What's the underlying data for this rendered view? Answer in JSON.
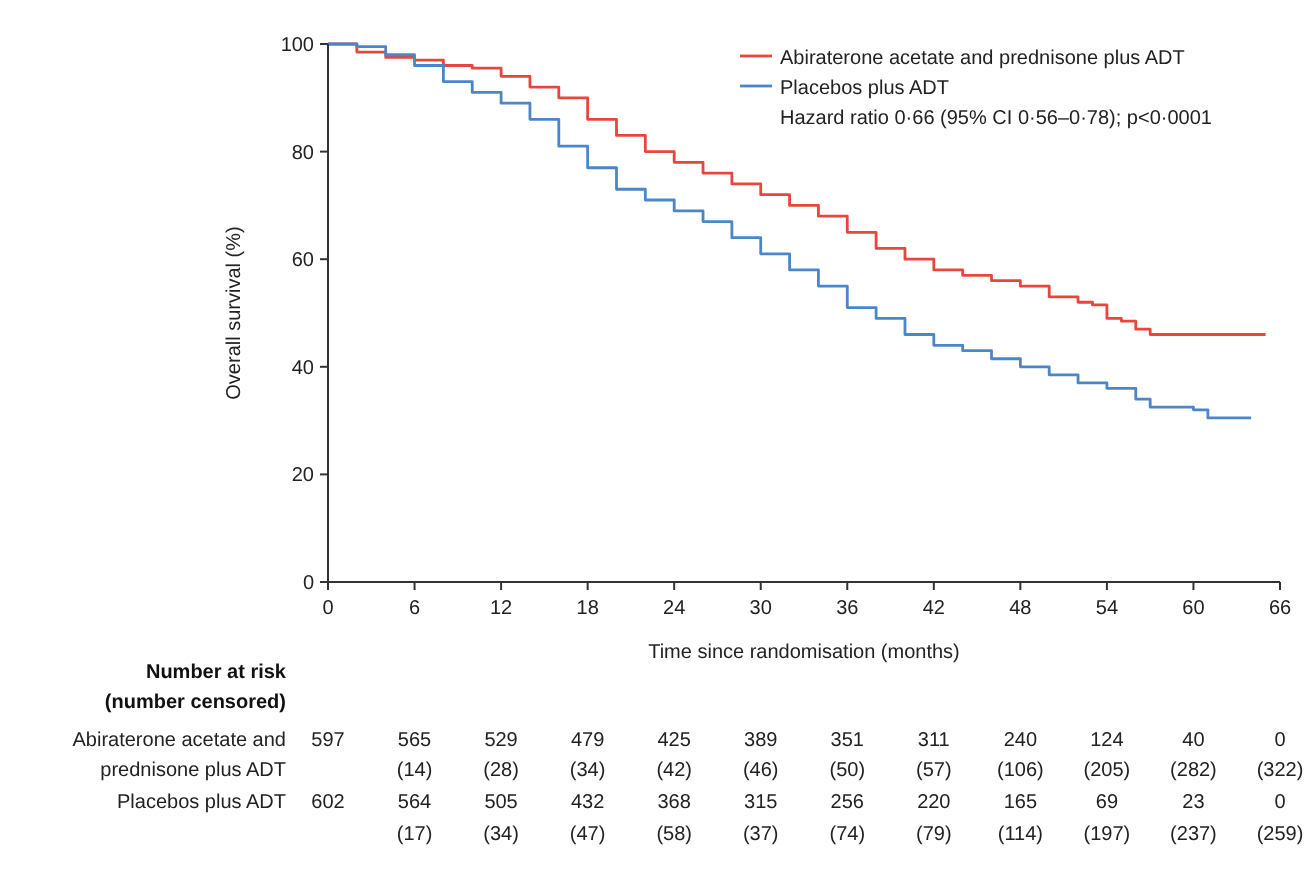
{
  "chart_data": {
    "type": "step",
    "xlabel": "Time since randomisation (months)",
    "ylabel": "Overall survival (%)",
    "xlim": [
      0,
      66
    ],
    "xticks": [
      0,
      6,
      12,
      18,
      24,
      30,
      36,
      42,
      48,
      54,
      60,
      66
    ],
    "ylim": [
      0,
      100
    ],
    "yticks": [
      0,
      20,
      40,
      60,
      80,
      100
    ],
    "legend": "top right",
    "grid": false,
    "series": [
      {
        "name": "Abiraterone acetate and prednisone plus ADT",
        "color": "#e8463c",
        "x": [
          0,
          2,
          4,
          6,
          8,
          10,
          12,
          14,
          16,
          18,
          20,
          22,
          24,
          26,
          28,
          30,
          32,
          34,
          36,
          38,
          40,
          42,
          44,
          46,
          48,
          50,
          52,
          53,
          54,
          55,
          56,
          57,
          60,
          65
        ],
        "values": [
          100,
          98.5,
          97.5,
          97,
          96,
          95.5,
          94,
          92,
          90,
          86,
          83,
          80,
          78,
          76,
          74,
          72,
          70,
          68,
          65,
          62,
          60,
          58,
          57,
          56,
          55,
          53,
          52,
          51.5,
          49,
          48.5,
          47,
          46,
          46,
          46
        ]
      },
      {
        "name": "Placebos plus ADT",
        "color": "#4a86c8",
        "x": [
          0,
          2,
          4,
          6,
          8,
          10,
          12,
          14,
          16,
          18,
          20,
          22,
          24,
          26,
          28,
          30,
          32,
          34,
          36,
          38,
          40,
          42,
          44,
          46,
          48,
          50,
          52,
          54,
          56,
          57,
          60,
          61,
          64
        ],
        "values": [
          100,
          99.5,
          98,
          96,
          93,
          91,
          89,
          86,
          81,
          77,
          73,
          71,
          69,
          67,
          64,
          61,
          58,
          55,
          51,
          49,
          46,
          44,
          43,
          41.5,
          40,
          38.5,
          37,
          36,
          34,
          32.5,
          32,
          30.5,
          30.5
        ]
      }
    ],
    "annotations": [
      "Hazard ratio 0·66 (95% CI 0·56–0·78); p<0·0001",
      "Number at risk",
      "(number censored)",
      "Abiraterone acetate and",
      "prednisone plus ADT",
      "Placebos plus ADT",
      "597 565 529 479 425 389 351 311 240 124 40 0",
      "(14) (28) (34) (42) (46) (50) (57) (106) (205) (282) (322)",
      "602 564 505 432 368 315 256 220 165 69 23 0",
      "(17) (34) (47) (58) (37) (74) (79) (114) (197) (237) (259)"
    ]
  }
}
